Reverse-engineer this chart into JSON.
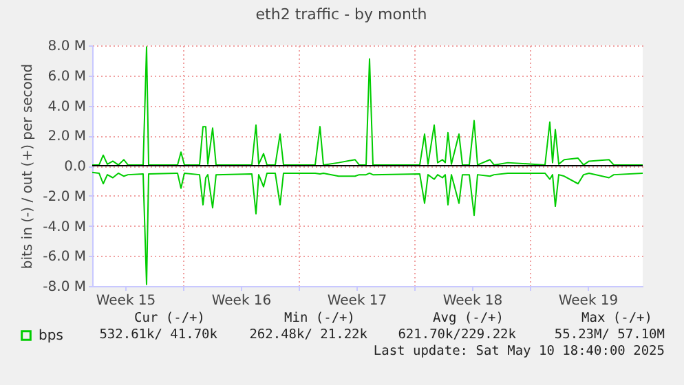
{
  "chart_data": {
    "type": "line",
    "title": "eth2 traffic - by month",
    "ylabel": "bits in (-) / out (+) per second",
    "x": [
      "2025-04-01T12:00",
      "2025-04-01T22:00",
      "2025-04-02T04:00",
      "2025-04-02T10:00",
      "2025-04-02T18:00",
      "2025-04-03T02:00",
      "2025-04-03T10:00",
      "2025-04-03T16:00",
      "2025-04-04T14:00",
      "2025-04-04T19:00",
      "2025-04-04T22:00",
      "2025-04-06T16:00",
      "2025-04-06T21:00",
      "2025-04-07T02:00",
      "2025-04-08T00:00",
      "2025-04-08T05:00",
      "2025-04-08T09:00",
      "2025-04-08T12:00",
      "2025-04-08T19:00",
      "2025-04-09T00:00",
      "2025-04-11T04:00",
      "2025-04-11T10:00",
      "2025-04-11T14:00",
      "2025-04-11T21:00",
      "2025-04-12T02:00",
      "2025-04-12T14:00",
      "2025-04-12T21:00",
      "2025-04-13T02:00",
      "2025-04-15T00:00",
      "2025-04-15T07:00",
      "2025-04-15T12:00",
      "2025-04-16T10:00",
      "2025-04-17T10:00",
      "2025-04-17T16:00",
      "2025-04-18T02:00",
      "2025-04-18T07:00",
      "2025-04-18T12:00",
      "2025-04-21T08:00",
      "2025-04-21T15:00",
      "2025-04-21T20:00",
      "2025-04-22T05:00",
      "2025-04-22T10:00",
      "2025-04-22T17:00",
      "2025-04-22T21:00",
      "2025-04-23T01:00",
      "2025-04-23T06:00",
      "2025-04-23T17:00",
      "2025-04-23T22:00",
      "2025-04-24T08:00",
      "2025-04-24T15:00",
      "2025-04-24T20:00",
      "2025-04-25T14:00",
      "2025-04-25T20:00",
      "2025-04-26T16:00",
      "2025-04-28T22:00",
      "2025-04-29T05:00",
      "2025-04-29T09:00",
      "2025-04-29T13:00",
      "2025-04-29T18:00",
      "2025-04-30T02:00",
      "2025-04-30T22:00",
      "2025-05-01T06:00",
      "2025-05-01T14:00",
      "2025-05-02T19:00",
      "2025-05-03T02:00",
      "2025-05-04T20:00"
    ],
    "series": [
      {
        "name": "bps",
        "color": "#00cc00",
        "values": [
          0.05,
          0.05,
          0.7,
          0.1,
          0.3,
          0.05,
          0.4,
          0.05,
          0.05,
          7.9,
          0.05,
          0.05,
          0.9,
          0.05,
          0.05,
          2.6,
          2.6,
          0.1,
          2.5,
          0.05,
          0.05,
          2.7,
          0.1,
          0.8,
          0.05,
          0.05,
          2.1,
          0.05,
          0.05,
          2.6,
          0.05,
          0.2,
          0.4,
          0.05,
          0.05,
          7.1,
          0.05,
          0.05,
          2.1,
          0.1,
          2.7,
          0.2,
          0.4,
          0.2,
          2.2,
          0.1,
          2.1,
          0.05,
          0.05,
          3.0,
          0.05,
          0.4,
          0.05,
          0.2,
          0.05,
          2.9,
          0.2,
          2.4,
          0.1,
          0.4,
          0.5,
          0.05,
          0.3,
          0.4,
          0.05,
          0.05
        ]
      },
      {
        "color": "#00cc00",
        "values": [
          -0.45,
          -0.5,
          -1.2,
          -0.6,
          -0.8,
          -0.5,
          -0.7,
          -0.6,
          -0.55,
          -7.9,
          -0.55,
          -0.5,
          -1.5,
          -0.5,
          -0.6,
          -2.6,
          -0.8,
          -0.6,
          -2.8,
          -0.6,
          -0.55,
          -3.2,
          -0.6,
          -1.4,
          -0.5,
          -0.5,
          -2.6,
          -0.5,
          -0.5,
          -0.55,
          -0.5,
          -0.7,
          -0.7,
          -0.6,
          -0.6,
          -0.5,
          -0.6,
          -0.55,
          -2.5,
          -0.6,
          -0.9,
          -0.6,
          -0.8,
          -0.6,
          -2.6,
          -0.6,
          -2.5,
          -0.6,
          -0.6,
          -3.3,
          -0.6,
          -0.7,
          -0.6,
          -0.5,
          -0.5,
          -0.9,
          -0.6,
          -2.7,
          -0.6,
          -0.7,
          -1.2,
          -0.6,
          -0.5,
          -0.8,
          -0.6,
          -0.5
        ]
      }
    ],
    "xlim": [
      "2025-04-01T12:00",
      "2025-05-04T20:00"
    ],
    "xticks": [
      {
        "value": "2025-04-03T12:00",
        "label": "Week 15"
      },
      {
        "value": "2025-04-07T00:00",
        "label": null
      },
      {
        "value": "2025-04-10T12:00",
        "label": "Week 16"
      },
      {
        "value": "2025-04-14T00:00",
        "label": null
      },
      {
        "value": "2025-04-17T12:00",
        "label": "Week 17"
      },
      {
        "value": "2025-04-21T00:00",
        "label": null
      },
      {
        "value": "2025-04-24T12:00",
        "label": "Week 18"
      },
      {
        "value": "2025-04-28T00:00",
        "label": null
      },
      {
        "value": "2025-05-01T12:00",
        "label": "Week 19"
      }
    ],
    "ylim": [
      -8,
      8
    ],
    "yticks": [
      {
        "value": -8,
        "label": "-8.0 M"
      },
      {
        "value": -6,
        "label": "-6.0 M"
      },
      {
        "value": -4,
        "label": "-4.0 M"
      },
      {
        "value": -2,
        "label": "-2.0 M"
      },
      {
        "value": 0,
        "label": "0.0"
      },
      {
        "value": 2,
        "label": "2.0 M"
      },
      {
        "value": 4,
        "label": "4.0 M"
      },
      {
        "value": 6,
        "label": "6.0 M"
      },
      {
        "value": 8,
        "label": "8.0 M"
      }
    ],
    "ref_lines": [
      {
        "axis": "y",
        "value": 0,
        "color": "#000000"
      }
    ],
    "grid": true,
    "legend": "bottom left",
    "annotations": [
      "Cur (-/+)",
      "Min (-/+)",
      "Avg (-/+)",
      "Max (-/+)",
      "532.61k/ 41.70k",
      "262.48k/ 21.22k",
      "621.70k/229.22k",
      "55.23M/ 57.10M",
      "Last update: Sat May 10 18:40:00 2025"
    ]
  }
}
